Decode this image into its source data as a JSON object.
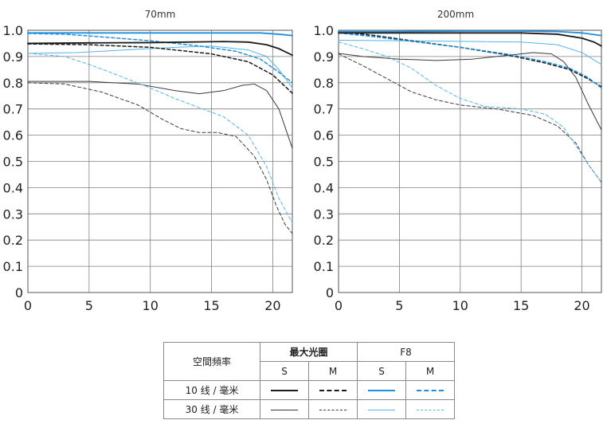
{
  "legend": {
    "row_header": "空間頻率",
    "group1": "最大光圈",
    "group2": "F8",
    "sub": [
      "S",
      "M",
      "S",
      "M"
    ],
    "row1": "10 线 / 毫米",
    "row2": "30 线 / 毫米"
  },
  "chart_data": [
    {
      "type": "line",
      "title": "70mm",
      "xlim": [
        0,
        21.6
      ],
      "ylim": [
        0,
        1.0
      ],
      "xticks": [
        "0",
        "5",
        "10",
        "15",
        "20"
      ],
      "yticks": [
        "0",
        "0.1",
        "0.2",
        "0.3",
        "0.4",
        "0.5",
        "0.6",
        "0.7",
        "0.8",
        "0.9",
        "1.0"
      ],
      "grid": true,
      "series": [
        {
          "group": "最大光圈",
          "freq": "10 线 / 毫米",
          "orientation": "S",
          "color": "#1a1a1a",
          "style": "solid",
          "width": 1.8,
          "x": [
            0,
            5,
            10,
            13,
            16,
            18,
            19.5,
            20.5,
            21.6
          ],
          "y": [
            0.95,
            0.952,
            0.953,
            0.955,
            0.957,
            0.955,
            0.945,
            0.93,
            0.905
          ]
        },
        {
          "group": "最大光圈",
          "freq": "10 线 / 毫米",
          "orientation": "M",
          "color": "#1a1a1a",
          "style": "dashed",
          "width": 1.5,
          "x": [
            0,
            5,
            10,
            15,
            18,
            20,
            21.6
          ],
          "y": [
            0.948,
            0.945,
            0.935,
            0.91,
            0.88,
            0.83,
            0.76
          ]
        },
        {
          "group": "F8",
          "freq": "10 线 / 毫米",
          "orientation": "S",
          "color": "#1e90e0",
          "style": "solid",
          "width": 1.8,
          "x": [
            0,
            5,
            10,
            15,
            19,
            20.5,
            21.6
          ],
          "y": [
            0.99,
            0.99,
            0.99,
            0.99,
            0.99,
            0.985,
            0.98
          ]
        },
        {
          "group": "F8",
          "freq": "10 线 / 毫米",
          "orientation": "M",
          "color": "#1e90e0",
          "style": "dashed",
          "width": 1.5,
          "x": [
            0,
            3,
            6,
            10,
            14,
            17,
            19,
            20.5,
            21.6
          ],
          "y": [
            0.988,
            0.985,
            0.975,
            0.96,
            0.94,
            0.92,
            0.89,
            0.84,
            0.8
          ]
        },
        {
          "group": "最大光圈",
          "freq": "30 线 / 毫米",
          "orientation": "S",
          "color": "#3a3a3a",
          "style": "solid",
          "width": 1.0,
          "x": [
            0,
            5,
            9,
            12,
            14,
            16,
            17.5,
            18.5,
            19.5,
            20.5,
            21.6
          ],
          "y": [
            0.805,
            0.805,
            0.795,
            0.77,
            0.758,
            0.77,
            0.79,
            0.795,
            0.77,
            0.7,
            0.55
          ]
        },
        {
          "group": "最大光圈",
          "freq": "30 线 / 毫米",
          "orientation": "M",
          "color": "#3a3a3a",
          "style": "dashed",
          "width": 1.0,
          "x": [
            0,
            3,
            6,
            9,
            11,
            12.5,
            14,
            15.5,
            17,
            18.5,
            19.5,
            20.3,
            21,
            21.6
          ],
          "y": [
            0.8,
            0.795,
            0.765,
            0.715,
            0.66,
            0.625,
            0.61,
            0.61,
            0.595,
            0.52,
            0.43,
            0.33,
            0.26,
            0.225
          ]
        },
        {
          "group": "F8",
          "freq": "30 线 / 毫米",
          "orientation": "S",
          "color": "#55b4ea",
          "style": "solid",
          "width": 1.0,
          "x": [
            0,
            4,
            8,
            12,
            15,
            18,
            19.5,
            20.5,
            21.6
          ],
          "y": [
            0.912,
            0.915,
            0.925,
            0.935,
            0.94,
            0.925,
            0.9,
            0.85,
            0.78
          ]
        },
        {
          "group": "F8",
          "freq": "30 线 / 毫米",
          "orientation": "M",
          "color": "#55b4ea",
          "style": "dashed",
          "width": 1.0,
          "x": [
            0,
            3,
            5,
            7,
            10,
            12,
            14,
            16,
            18,
            19.5,
            20.5,
            21.6
          ],
          "y": [
            0.912,
            0.9,
            0.87,
            0.835,
            0.78,
            0.74,
            0.705,
            0.67,
            0.6,
            0.48,
            0.36,
            0.265
          ]
        }
      ]
    },
    {
      "type": "line",
      "title": "200mm",
      "xlim": [
        0,
        21.6
      ],
      "ylim": [
        0,
        1.0
      ],
      "xticks": [
        "0",
        "5",
        "10",
        "15",
        "20"
      ],
      "yticks": [
        "0",
        "0.1",
        "0.2",
        "0.3",
        "0.4",
        "0.5",
        "0.6",
        "0.7",
        "0.8",
        "0.9",
        "1.0"
      ],
      "grid": true,
      "series": [
        {
          "group": "最大光圈",
          "freq": "10 线 / 毫米",
          "orientation": "S",
          "color": "#1a1a1a",
          "style": "solid",
          "width": 1.8,
          "x": [
            0,
            5,
            10,
            15,
            18,
            20,
            21,
            21.6
          ],
          "y": [
            0.99,
            0.99,
            0.99,
            0.99,
            0.985,
            0.97,
            0.955,
            0.94
          ]
        },
        {
          "group": "最大光圈",
          "freq": "10 线 / 毫米",
          "orientation": "M",
          "color": "#1a1a1a",
          "style": "dashed",
          "width": 1.5,
          "x": [
            0,
            3,
            6,
            10,
            14,
            17,
            19,
            20.5,
            21.6
          ],
          "y": [
            0.995,
            0.98,
            0.96,
            0.935,
            0.905,
            0.875,
            0.85,
            0.815,
            0.785
          ]
        },
        {
          "group": "F8",
          "freq": "10 线 / 毫米",
          "orientation": "S",
          "color": "#1e90e0",
          "style": "solid",
          "width": 1.8,
          "x": [
            0,
            5,
            10,
            15,
            18,
            20,
            21.6
          ],
          "y": [
            0.995,
            0.995,
            0.997,
            0.997,
            0.995,
            0.99,
            0.98
          ]
        },
        {
          "group": "F8",
          "freq": "10 线 / 毫米",
          "orientation": "M",
          "color": "#1e90e0",
          "style": "dashed",
          "width": 1.5,
          "x": [
            0,
            3,
            6,
            10,
            14,
            17,
            19,
            20.5,
            21.6
          ],
          "y": [
            0.99,
            0.975,
            0.958,
            0.935,
            0.908,
            0.88,
            0.855,
            0.82,
            0.78
          ]
        },
        {
          "group": "最大光圈",
          "freq": "30 线 / 毫米",
          "orientation": "S",
          "color": "#3a3a3a",
          "style": "solid",
          "width": 1.0,
          "x": [
            0,
            2,
            5,
            8,
            11,
            14,
            16,
            17.5,
            18.5,
            19.5,
            20.5,
            21.6
          ],
          "y": [
            0.912,
            0.9,
            0.89,
            0.885,
            0.89,
            0.905,
            0.915,
            0.91,
            0.88,
            0.82,
            0.72,
            0.62
          ]
        },
        {
          "group": "最大光圈",
          "freq": "30 线 / 毫米",
          "orientation": "M",
          "color": "#3a3a3a",
          "style": "dashed",
          "width": 1.0,
          "x": [
            0,
            2,
            4,
            6,
            8,
            10,
            13,
            16,
            18,
            19.5,
            20.5,
            21.6
          ],
          "y": [
            0.91,
            0.865,
            0.815,
            0.765,
            0.735,
            0.715,
            0.7,
            0.675,
            0.635,
            0.57,
            0.49,
            0.42
          ]
        },
        {
          "group": "F8",
          "freq": "30 线 / 毫米",
          "orientation": "S",
          "color": "#55b4ea",
          "style": "solid",
          "width": 1.0,
          "x": [
            0,
            5,
            10,
            15,
            18,
            20,
            21.6
          ],
          "y": [
            0.962,
            0.96,
            0.958,
            0.955,
            0.945,
            0.915,
            0.87
          ]
        },
        {
          "group": "F8",
          "freq": "30 线 / 毫米",
          "orientation": "M",
          "color": "#55b4ea",
          "style": "dashed",
          "width": 1.0,
          "x": [
            0,
            2,
            4,
            6,
            8,
            10,
            12,
            15,
            17,
            18.5,
            19.5,
            20.5,
            21.6
          ],
          "y": [
            0.955,
            0.93,
            0.9,
            0.855,
            0.79,
            0.74,
            0.71,
            0.7,
            0.68,
            0.63,
            0.56,
            0.49,
            0.42
          ]
        }
      ]
    }
  ]
}
